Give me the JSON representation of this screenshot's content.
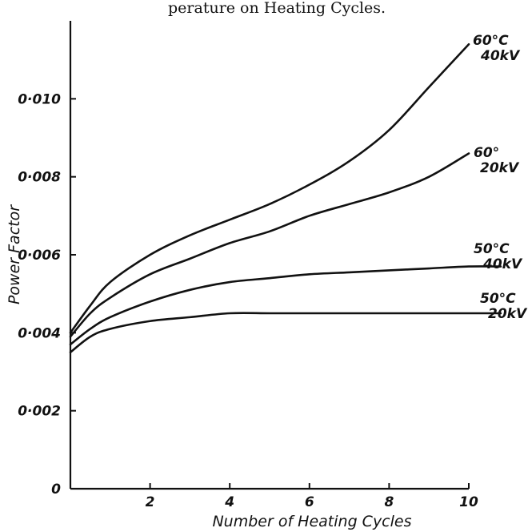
{
  "header_fragment": "perature on Heating Cycles.",
  "chart_data": {
    "type": "line",
    "xlabel": "Number of Heating Cycles",
    "ylabel": "Power Factor",
    "xlim": [
      0,
      10
    ],
    "ylim": [
      0,
      0.012
    ],
    "x_ticks": [
      2,
      4,
      6,
      8,
      10
    ],
    "y_ticks": [
      0,
      0.002,
      0.004,
      0.006,
      0.008,
      0.01
    ],
    "x_tick_labels": [
      "2",
      "4",
      "6",
      "8",
      "10"
    ],
    "y_tick_labels": [
      "0",
      "0·002",
      "0·004",
      "0·006",
      "0·008",
      "0·010"
    ],
    "grid": false,
    "series": [
      {
        "name": "60°C 40kV",
        "label_lines": [
          "60°C",
          "40kV"
        ],
        "x": [
          0,
          0.5,
          1,
          2,
          3,
          4,
          5,
          6,
          7,
          8,
          9,
          10
        ],
        "values": [
          0.004,
          0.0047,
          0.0053,
          0.006,
          0.0065,
          0.0069,
          0.0073,
          0.0078,
          0.0084,
          0.0092,
          0.0103,
          0.0114
        ]
      },
      {
        "name": "60° 20kV",
        "label_lines": [
          "60°",
          "20kV"
        ],
        "x": [
          0,
          0.5,
          1,
          2,
          3,
          4,
          5,
          6,
          7,
          8,
          9,
          10
        ],
        "values": [
          0.0039,
          0.0045,
          0.0049,
          0.0055,
          0.0059,
          0.0063,
          0.0066,
          0.007,
          0.0073,
          0.0076,
          0.008,
          0.0086
        ]
      },
      {
        "name": "50°C 40kV",
        "label_lines": [
          "50°C",
          "40kV"
        ],
        "x": [
          0,
          0.5,
          1,
          2,
          3,
          4,
          5,
          6,
          7,
          8,
          9,
          10,
          10.8
        ],
        "values": [
          0.0037,
          0.0041,
          0.0044,
          0.0048,
          0.0051,
          0.0053,
          0.0054,
          0.0055,
          0.00555,
          0.0056,
          0.00565,
          0.0057,
          0.0057
        ]
      },
      {
        "name": "50°C 20kV",
        "label_lines": [
          "50°C",
          "20kV"
        ],
        "x": [
          0,
          0.5,
          1,
          2,
          3,
          4,
          5,
          6,
          7,
          8,
          9,
          10,
          10.8
        ],
        "values": [
          0.0035,
          0.0039,
          0.0041,
          0.0043,
          0.0044,
          0.0045,
          0.0045,
          0.0045,
          0.0045,
          0.0045,
          0.0045,
          0.0045,
          0.0045
        ]
      }
    ]
  }
}
